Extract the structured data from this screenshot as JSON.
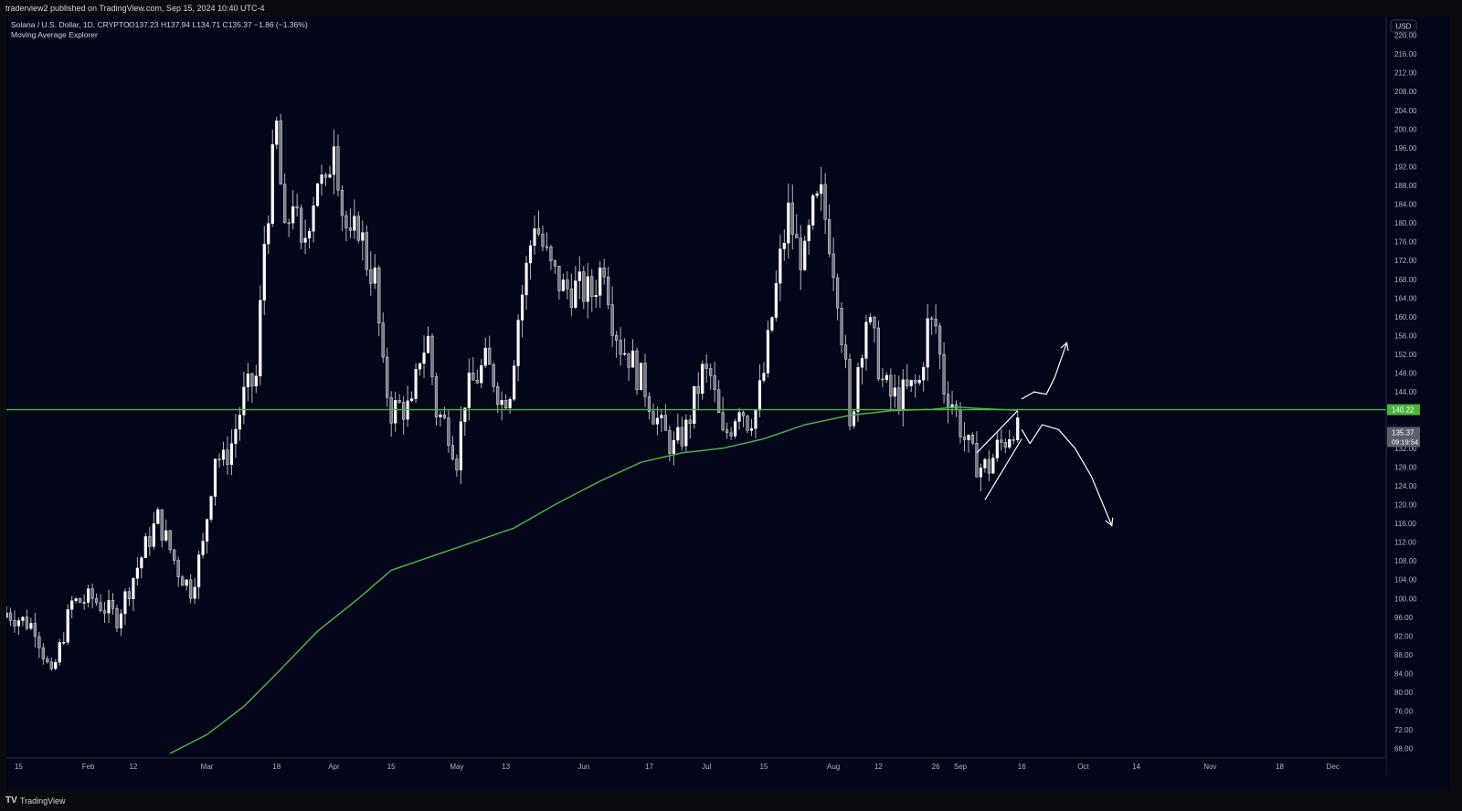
{
  "header": {
    "published": "traderview2 published on TradingView.com, Sep 15, 2024 10:40 UTC-4"
  },
  "legend": {
    "symbol": "Solana / U.S. Dollar, 1D, CRYPTO",
    "ohlc": "O137.23 H137.94 L134.71 C135.37 −1.86 (−1.36%)",
    "indicator": "Moving Average Explorer"
  },
  "price_axis": {
    "currency": "USD"
  },
  "footer": {
    "logo": "TV",
    "brand": "TradingView"
  },
  "colors": {
    "background": "#030519",
    "candle": "#ffffff",
    "moving_average": "#4caf50",
    "horizontal_line": "#4ab53a",
    "drawing": "#ffffff"
  },
  "chart_data": {
    "type": "candlestick",
    "title": "Solana / U.S. Dollar, 1D, CRYPTO",
    "ylim": [
      66,
      224
    ],
    "y_ticks": [
      "220.00",
      "216.00",
      "212.00",
      "208.00",
      "204.00",
      "200.00",
      "196.00",
      "192.00",
      "188.00",
      "184.00",
      "180.00",
      "176.00",
      "172.00",
      "168.00",
      "164.00",
      "160.00",
      "156.00",
      "152.00",
      "148.00",
      "144.00",
      "140.00",
      "136.00",
      "132.00",
      "128.00",
      "124.00",
      "120.00",
      "116.00",
      "112.00",
      "108.00",
      "104.00",
      "100.00",
      "96.00",
      "92.00",
      "88.00",
      "84.00",
      "80.00",
      "76.00",
      "72.00",
      "68.00"
    ],
    "x_ticks": [
      {
        "label": "15",
        "date": "2024-01-15"
      },
      {
        "label": "Feb",
        "date": "2024-02-01"
      },
      {
        "label": "12",
        "date": "2024-02-12"
      },
      {
        "label": "Mar",
        "date": "2024-03-01"
      },
      {
        "label": "18",
        "date": "2024-03-18"
      },
      {
        "label": "Apr",
        "date": "2024-04-01"
      },
      {
        "label": "15",
        "date": "2024-04-15"
      },
      {
        "label": "May",
        "date": "2024-05-01"
      },
      {
        "label": "13",
        "date": "2024-05-13"
      },
      {
        "label": "Jun",
        "date": "2024-06-01"
      },
      {
        "label": "17",
        "date": "2024-06-17"
      },
      {
        "label": "Jul",
        "date": "2024-07-01"
      },
      {
        "label": "15",
        "date": "2024-07-15"
      },
      {
        "label": "Aug",
        "date": "2024-08-01"
      },
      {
        "label": "12",
        "date": "2024-08-12"
      },
      {
        "label": "26",
        "date": "2024-08-26"
      },
      {
        "label": "Sep",
        "date": "2024-09-01"
      },
      {
        "label": "16",
        "date": "2024-09-16"
      },
      {
        "label": "Oct",
        "date": "2024-10-01"
      },
      {
        "label": "14",
        "date": "2024-10-14"
      },
      {
        "label": "Nov",
        "date": "2024-11-01"
      },
      {
        "label": "18",
        "date": "2024-11-18"
      },
      {
        "label": "Dec",
        "date": "2024-12-01"
      }
    ],
    "date_range": [
      "2024-01-12",
      "2024-12-14"
    ],
    "price_path": [
      [
        "2024-01-12",
        97
      ],
      [
        "2024-01-19",
        94
      ],
      [
        "2024-01-23",
        83
      ],
      [
        "2024-01-28",
        99
      ],
      [
        "2024-02-02",
        100
      ],
      [
        "2024-02-08",
        96
      ],
      [
        "2024-02-15",
        111
      ],
      [
        "2024-02-18",
        117
      ],
      [
        "2024-02-23",
        106
      ],
      [
        "2024-02-26",
        102
      ],
      [
        "2024-02-29",
        111
      ],
      [
        "2024-03-03",
        131
      ],
      [
        "2024-03-05",
        129
      ],
      [
        "2024-03-07",
        133
      ],
      [
        "2024-03-10",
        143
      ],
      [
        "2024-03-13",
        147
      ],
      [
        "2024-03-15",
        176
      ],
      [
        "2024-03-18",
        200
      ],
      [
        "2024-03-20",
        176
      ],
      [
        "2024-03-22",
        186
      ],
      [
        "2024-03-24",
        173
      ],
      [
        "2024-03-26",
        182
      ],
      [
        "2024-03-28",
        190
      ],
      [
        "2024-03-30",
        186
      ],
      [
        "2024-04-01",
        200
      ],
      [
        "2024-04-03",
        183
      ],
      [
        "2024-04-05",
        175
      ],
      [
        "2024-04-07",
        180
      ],
      [
        "2024-04-09",
        172
      ],
      [
        "2024-04-11",
        168
      ],
      [
        "2024-04-13",
        148
      ],
      [
        "2024-04-15",
        140
      ],
      [
        "2024-04-17",
        141
      ],
      [
        "2024-04-20",
        140
      ],
      [
        "2024-04-22",
        152
      ],
      [
        "2024-04-24",
        155
      ],
      [
        "2024-04-26",
        140
      ],
      [
        "2024-04-29",
        136
      ],
      [
        "2024-05-01",
        130
      ],
      [
        "2024-05-03",
        143
      ],
      [
        "2024-05-05",
        146
      ],
      [
        "2024-05-08",
        150
      ],
      [
        "2024-05-10",
        147
      ],
      [
        "2024-05-12",
        142
      ],
      [
        "2024-05-14",
        145
      ],
      [
        "2024-05-16",
        160
      ],
      [
        "2024-05-18",
        170
      ],
      [
        "2024-05-20",
        181
      ],
      [
        "2024-05-22",
        175
      ],
      [
        "2024-05-24",
        170
      ],
      [
        "2024-05-27",
        166
      ],
      [
        "2024-05-30",
        166
      ],
      [
        "2024-06-03",
        165
      ],
      [
        "2024-06-06",
        172
      ],
      [
        "2024-06-08",
        160
      ],
      [
        "2024-06-10",
        154
      ],
      [
        "2024-06-12",
        152
      ],
      [
        "2024-06-14",
        148
      ],
      [
        "2024-06-16",
        145
      ],
      [
        "2024-06-18",
        140
      ],
      [
        "2024-06-20",
        136
      ],
      [
        "2024-06-23",
        132
      ],
      [
        "2024-06-26",
        136
      ],
      [
        "2024-06-28",
        142
      ],
      [
        "2024-06-30",
        148
      ],
      [
        "2024-07-02",
        147
      ],
      [
        "2024-07-05",
        134
      ],
      [
        "2024-07-07",
        137
      ],
      [
        "2024-07-09",
        142
      ],
      [
        "2024-07-11",
        138
      ],
      [
        "2024-07-13",
        140
      ],
      [
        "2024-07-15",
        148
      ],
      [
        "2024-07-17",
        160
      ],
      [
        "2024-07-19",
        172
      ],
      [
        "2024-07-21",
        182
      ],
      [
        "2024-07-23",
        175
      ],
      [
        "2024-07-25",
        172
      ],
      [
        "2024-07-27",
        182
      ],
      [
        "2024-07-29",
        185
      ],
      [
        "2024-07-31",
        177
      ],
      [
        "2024-08-02",
        166
      ],
      [
        "2024-08-04",
        148
      ],
      [
        "2024-08-05",
        135
      ],
      [
        "2024-08-07",
        150
      ],
      [
        "2024-08-09",
        160
      ],
      [
        "2024-08-11",
        154
      ],
      [
        "2024-08-13",
        146
      ],
      [
        "2024-08-15",
        143
      ],
      [
        "2024-08-17",
        143
      ],
      [
        "2024-08-19",
        144
      ],
      [
        "2024-08-22",
        146
      ],
      [
        "2024-08-24",
        158
      ],
      [
        "2024-08-26",
        158
      ],
      [
        "2024-08-28",
        145
      ],
      [
        "2024-08-30",
        142
      ],
      [
        "2024-09-02",
        134
      ],
      [
        "2024-09-04",
        130
      ],
      [
        "2024-09-06",
        128
      ],
      [
        "2024-09-08",
        128
      ],
      [
        "2024-09-10",
        132
      ],
      [
        "2024-09-12",
        134
      ],
      [
        "2024-09-14",
        137
      ],
      [
        "2024-09-15",
        135.37
      ]
    ],
    "series": [
      {
        "name": "Moving Average Explorer",
        "type": "line",
        "points": [
          [
            "2024-02-21",
            67
          ],
          [
            "2024-03-01",
            71
          ],
          [
            "2024-03-10",
            77
          ],
          [
            "2024-03-18",
            84
          ],
          [
            "2024-03-28",
            93
          ],
          [
            "2024-04-07",
            100
          ],
          [
            "2024-04-15",
            106
          ],
          [
            "2024-04-25",
            109
          ],
          [
            "2024-05-05",
            112
          ],
          [
            "2024-05-15",
            115
          ],
          [
            "2024-05-25",
            120
          ],
          [
            "2024-06-05",
            125
          ],
          [
            "2024-06-15",
            129
          ],
          [
            "2024-06-25",
            131
          ],
          [
            "2024-07-05",
            132
          ],
          [
            "2024-07-15",
            134
          ],
          [
            "2024-07-25",
            137
          ],
          [
            "2024-08-05",
            139
          ],
          [
            "2024-08-15",
            140
          ],
          [
            "2024-08-25",
            140.3
          ],
          [
            "2024-08-31",
            140.8
          ],
          [
            "2024-09-05",
            140.5
          ],
          [
            "2024-09-15",
            140.1
          ]
        ]
      }
    ],
    "horizontal_levels": [
      {
        "value": 140.22,
        "label": "140.22"
      }
    ],
    "last_price": {
      "value": 135.37,
      "label": "135.37",
      "countdown": "09:19:54"
    },
    "drawings": {
      "rising_wedge": {
        "upper": [
          [
            "2024-09-05",
            131
          ],
          [
            "2024-09-15",
            140
          ]
        ],
        "lower": [
          [
            "2024-09-07",
            121
          ],
          [
            "2024-09-16",
            134
          ]
        ]
      },
      "arrow_up": [
        [
          "2024-09-16",
          142.5
        ],
        [
          "2024-09-19",
          144
        ],
        [
          "2024-09-22",
          143.5
        ],
        [
          "2024-09-24",
          147
        ],
        [
          "2024-09-27",
          154.5
        ]
      ],
      "arrow_down": [
        [
          "2024-09-16",
          136
        ],
        [
          "2024-09-18",
          133
        ],
        [
          "2024-09-21",
          137
        ],
        [
          "2024-09-25",
          136
        ],
        [
          "2024-09-29",
          132
        ],
        [
          "2024-10-03",
          126
        ],
        [
          "2024-10-08",
          115.5
        ]
      ]
    }
  }
}
